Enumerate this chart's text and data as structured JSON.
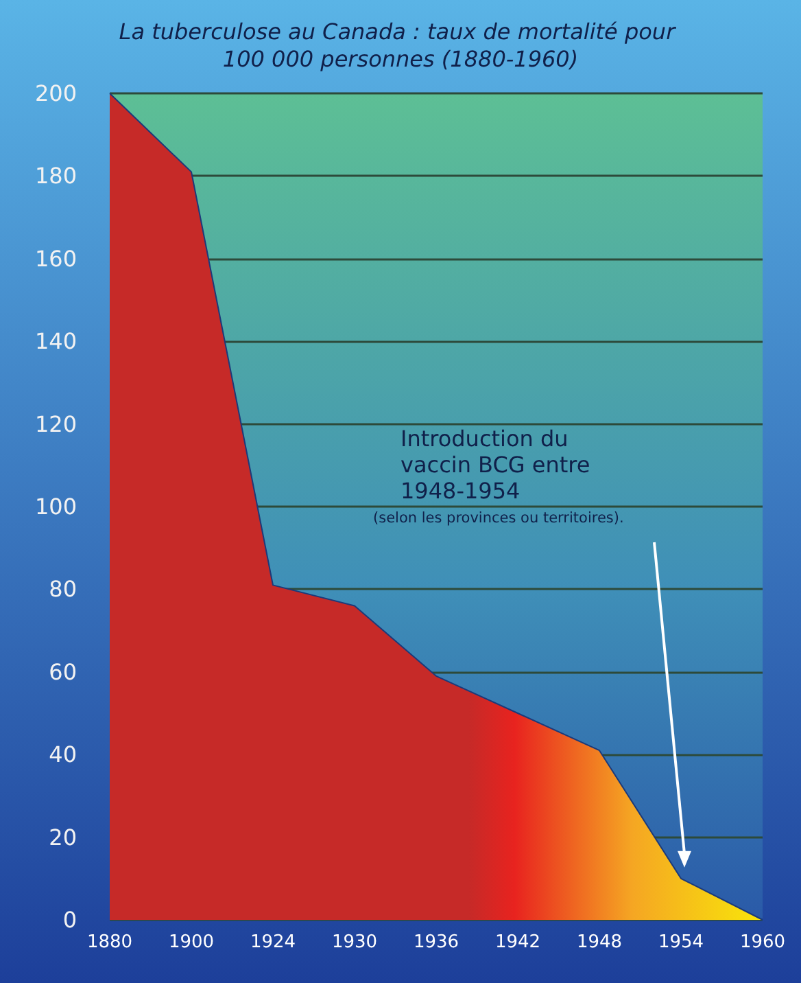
{
  "chart_data": {
    "type": "area",
    "title": "La tuberculose au Canada : taux de mortalité pour 100 000 personnes (1880-1960)",
    "categories": [
      "1880",
      "1900",
      "1924",
      "1930",
      "1936",
      "1942",
      "1948",
      "1954",
      "1960"
    ],
    "series": [
      {
        "color": "#c62a28",
        "values": [
          200,
          181,
          81,
          76,
          59,
          50,
          41,
          10,
          0
        ]
      }
    ],
    "ylim": [
      0,
      200
    ],
    "yticks": [
      0,
      20,
      40,
      60,
      80,
      100,
      120,
      140,
      160,
      180,
      200
    ],
    "grid": "y",
    "annotations": [
      "Introduction du\nvaccin BCG entre\n1948-1954",
      "(selon les provinces ou territoires)."
    ]
  }
}
